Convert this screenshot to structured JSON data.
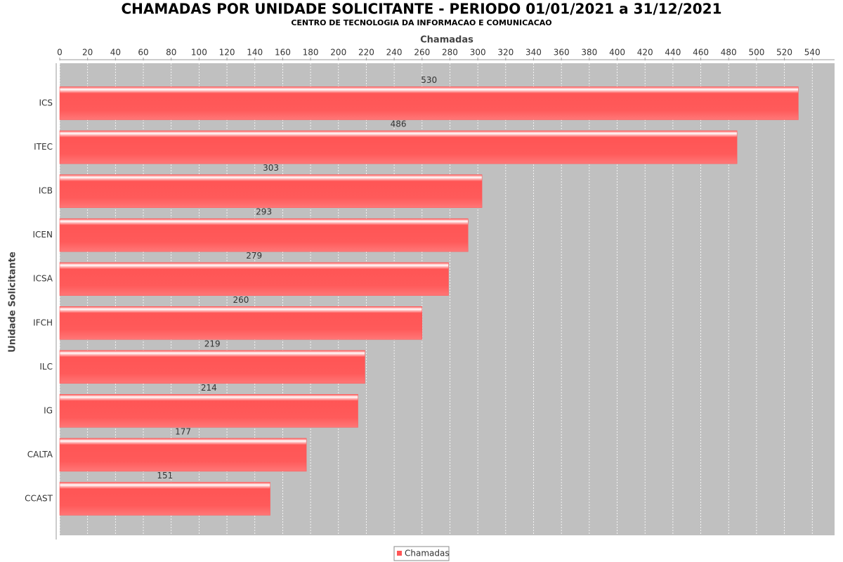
{
  "chart_data": {
    "type": "bar",
    "orientation": "horizontal",
    "title": "CHAMADAS POR UNIDADE SOLICITANTE - PERIODO 01/01/2021 a 31/12/2021",
    "subtitle": "CENTRO DE TECNOLOGIA DA INFORMACAO E COMUNICACAO",
    "x_label": "Chamadas",
    "y_label": "Unidade Solicitante",
    "categories": [
      "ICS",
      "ITEC",
      "ICB",
      "ICEN",
      "ICSA",
      "IFCH",
      "ILC",
      "IG",
      "CALTA",
      "CCAST"
    ],
    "series": [
      {
        "name": "Chamadas",
        "color": "#ff5555",
        "values": [
          530,
          486,
          303,
          293,
          279,
          260,
          219,
          214,
          177,
          151
        ]
      }
    ],
    "xlim": [
      0,
      556
    ],
    "xticks": [
      0,
      20,
      40,
      60,
      80,
      100,
      120,
      140,
      160,
      180,
      200,
      220,
      240,
      260,
      280,
      300,
      320,
      340,
      360,
      380,
      400,
      420,
      440,
      460,
      480,
      500,
      520,
      540
    ],
    "grid": true,
    "legend": "bottom"
  }
}
